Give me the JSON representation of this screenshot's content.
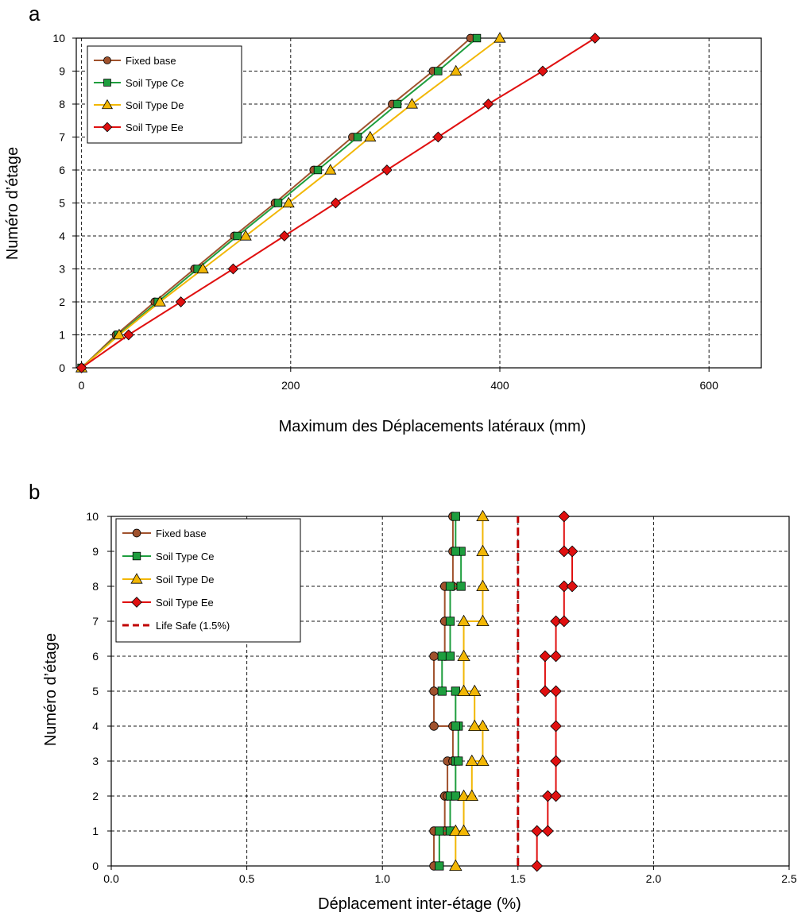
{
  "chart_data": [
    {
      "panel_label": "a",
      "type": "line",
      "xlabel": "Maximum des Déplacements latéraux (mm)",
      "ylabel": "Numéro d’étage",
      "xlim": [
        -5,
        650
      ],
      "ylim": [
        0,
        10
      ],
      "xticks": [
        {
          "v": 0,
          "t": "0"
        },
        {
          "v": 200,
          "t": "200"
        },
        {
          "v": 400,
          "t": "400"
        },
        {
          "v": 600,
          "t": "600"
        }
      ],
      "yticks": [
        0,
        1,
        2,
        3,
        4,
        5,
        6,
        7,
        8,
        9,
        10
      ],
      "grid": true,
      "legend_position": "top-left",
      "series": [
        {
          "name": "Fixed base",
          "color": "#a0522d",
          "marker": "circle",
          "points": [
            [
              0,
              0
            ],
            [
              33,
              1
            ],
            [
              70,
              2
            ],
            [
              108,
              3
            ],
            [
              146,
              4
            ],
            [
              185,
              5
            ],
            [
              222,
              6
            ],
            [
              259,
              7
            ],
            [
              297,
              8
            ],
            [
              336,
              9
            ],
            [
              372,
              10
            ]
          ]
        },
        {
          "name": "Soil Type Ce",
          "color": "#1e9e3e",
          "marker": "square",
          "points": [
            [
              0,
              0
            ],
            [
              35,
              1
            ],
            [
              73,
              2
            ],
            [
              111,
              3
            ],
            [
              149,
              4
            ],
            [
              188,
              5
            ],
            [
              226,
              6
            ],
            [
              264,
              7
            ],
            [
              302,
              8
            ],
            [
              341,
              9
            ],
            [
              378,
              10
            ]
          ]
        },
        {
          "name": "Soil Type De",
          "color": "#f2b705",
          "marker": "triangle",
          "points": [
            [
              0,
              0
            ],
            [
              36,
              1
            ],
            [
              75,
              2
            ],
            [
              116,
              3
            ],
            [
              157,
              4
            ],
            [
              198,
              5
            ],
            [
              238,
              6
            ],
            [
              276,
              7
            ],
            [
              316,
              8
            ],
            [
              358,
              9
            ],
            [
              400,
              10
            ]
          ]
        },
        {
          "name": "Soil Type Ee",
          "color": "#e01010",
          "marker": "diamond",
          "points": [
            [
              0,
              0
            ],
            [
              45,
              1
            ],
            [
              95,
              2
            ],
            [
              145,
              3
            ],
            [
              194,
              4
            ],
            [
              243,
              5
            ],
            [
              292,
              6
            ],
            [
              341,
              7
            ],
            [
              389,
              8
            ],
            [
              441,
              9
            ],
            [
              491,
              10
            ]
          ]
        }
      ]
    },
    {
      "panel_label": "b",
      "type": "line",
      "xlabel": "Déplacement inter-étage (%)",
      "ylabel": "Numéro d’étage",
      "xlim": [
        0,
        2.5
      ],
      "ylim": [
        0,
        10
      ],
      "xticks": [
        {
          "v": 0,
          "t": "0.0"
        },
        {
          "v": 0.5,
          "t": "0.5"
        },
        {
          "v": 1.0,
          "t": "1.0"
        },
        {
          "v": 1.5,
          "t": "1.5"
        },
        {
          "v": 2.0,
          "t": "2.0"
        },
        {
          "v": 2.5,
          "t": "2.5"
        }
      ],
      "yticks": [
        0,
        1,
        2,
        3,
        4,
        5,
        6,
        7,
        8,
        9,
        10
      ],
      "grid": true,
      "legend_position": "top-left",
      "series": [
        {
          "name": "Fixed base",
          "color": "#a0522d",
          "marker": "circle",
          "points": [
            [
              1.19,
              0
            ],
            [
              1.19,
              1
            ],
            [
              1.23,
              1
            ],
            [
              1.23,
              2
            ],
            [
              1.24,
              2
            ],
            [
              1.24,
              3
            ],
            [
              1.26,
              3
            ],
            [
              1.26,
              4
            ],
            [
              1.19,
              4
            ],
            [
              1.19,
              5
            ],
            [
              1.19,
              6
            ],
            [
              1.23,
              6
            ],
            [
              1.23,
              7
            ],
            [
              1.23,
              8
            ],
            [
              1.26,
              8
            ],
            [
              1.26,
              9
            ],
            [
              1.26,
              10
            ]
          ]
        },
        {
          "name": "Soil Type Ce",
          "color": "#1e9e3e",
          "marker": "square",
          "points": [
            [
              1.21,
              0
            ],
            [
              1.21,
              1
            ],
            [
              1.25,
              1
            ],
            [
              1.25,
              2
            ],
            [
              1.27,
              2
            ],
            [
              1.27,
              3
            ],
            [
              1.28,
              3
            ],
            [
              1.28,
              4
            ],
            [
              1.27,
              4
            ],
            [
              1.27,
              5
            ],
            [
              1.22,
              5
            ],
            [
              1.22,
              6
            ],
            [
              1.25,
              6
            ],
            [
              1.25,
              7
            ],
            [
              1.25,
              8
            ],
            [
              1.29,
              8
            ],
            [
              1.29,
              9
            ],
            [
              1.27,
              9
            ],
            [
              1.27,
              10
            ]
          ]
        },
        {
          "name": "Soil Type De",
          "color": "#f2b705",
          "marker": "triangle",
          "points": [
            [
              1.27,
              0
            ],
            [
              1.27,
              1
            ],
            [
              1.3,
              1
            ],
            [
              1.3,
              2
            ],
            [
              1.33,
              2
            ],
            [
              1.33,
              3
            ],
            [
              1.37,
              3
            ],
            [
              1.37,
              4
            ],
            [
              1.34,
              4
            ],
            [
              1.34,
              5
            ],
            [
              1.3,
              5
            ],
            [
              1.3,
              6
            ],
            [
              1.3,
              7
            ],
            [
              1.37,
              7
            ],
            [
              1.37,
              8
            ],
            [
              1.37,
              9
            ],
            [
              1.37,
              10
            ]
          ]
        },
        {
          "name": "Soil Type Ee",
          "color": "#e01010",
          "marker": "diamond",
          "points": [
            [
              1.57,
              0
            ],
            [
              1.57,
              1
            ],
            [
              1.61,
              1
            ],
            [
              1.61,
              2
            ],
            [
              1.64,
              2
            ],
            [
              1.64,
              3
            ],
            [
              1.64,
              4
            ],
            [
              1.64,
              5
            ],
            [
              1.6,
              5
            ],
            [
              1.6,
              6
            ],
            [
              1.64,
              6
            ],
            [
              1.64,
              7
            ],
            [
              1.67,
              7
            ],
            [
              1.67,
              8
            ],
            [
              1.7,
              8
            ],
            [
              1.7,
              9
            ],
            [
              1.67,
              9
            ],
            [
              1.67,
              10
            ]
          ]
        },
        {
          "name": "Life Safe (1.5%)",
          "color": "#c00000",
          "marker": "none",
          "dashed": true,
          "points": [
            [
              1.5,
              0
            ],
            [
              1.5,
              10
            ]
          ]
        }
      ]
    }
  ]
}
